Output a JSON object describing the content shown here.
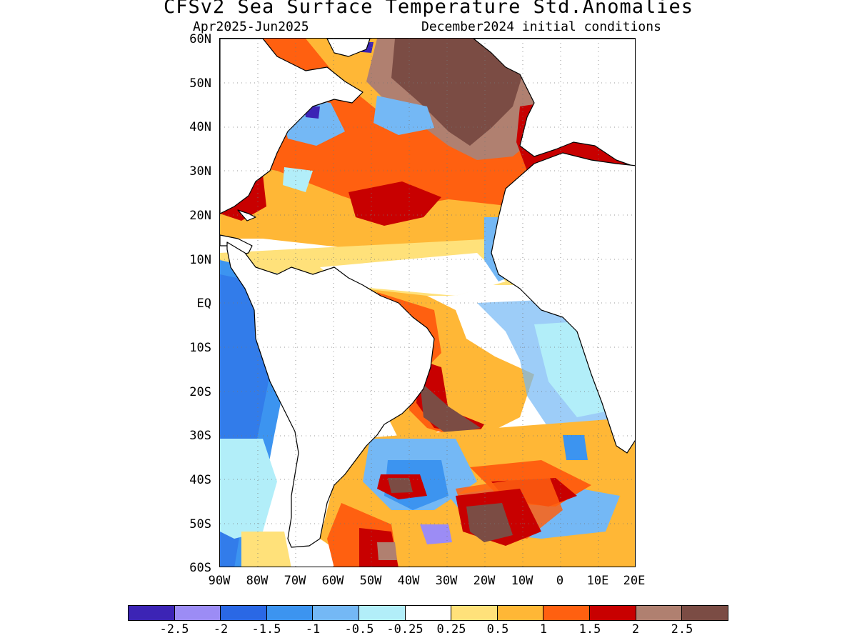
{
  "header": {
    "title": "CFSv2 Sea Surface Temperature Std.Anomalies",
    "period": "Apr2025-Jun2025",
    "initial_conditions": "December2024 initial conditions"
  },
  "map": {
    "projection": "latitude-longitude",
    "lon_range": [
      -90,
      20
    ],
    "lat_range": [
      -60,
      60
    ],
    "grid": true,
    "latitude_labels": [
      "60N",
      "50N",
      "40N",
      "30N",
      "20N",
      "10N",
      "EQ",
      "10S",
      "20S",
      "30S",
      "40S",
      "50S",
      "60S"
    ],
    "longitude_labels": [
      "90W",
      "80W",
      "70W",
      "60W",
      "50W",
      "40W",
      "30W",
      "20W",
      "10W",
      "0",
      "10E",
      "20E"
    ],
    "land_color": "#ffffff",
    "coastline_color": "#000000"
  },
  "colorbar": {
    "colors": [
      "#3c24b5",
      "#9c8cf5",
      "#2a68e5",
      "#3c94f0",
      "#74b8f5",
      "#b2eef9",
      "#ffffff",
      "#ffe17a",
      "#ffb736",
      "#ff6010",
      "#c80000",
      "#b08070",
      "#7b4c44"
    ],
    "labels": [
      "-2.5",
      "-2",
      "-1.5",
      "-1",
      "-0.5",
      "-0.25",
      "0.25",
      "0.5",
      "1",
      "1.5",
      "2",
      "2.5"
    ]
  }
}
